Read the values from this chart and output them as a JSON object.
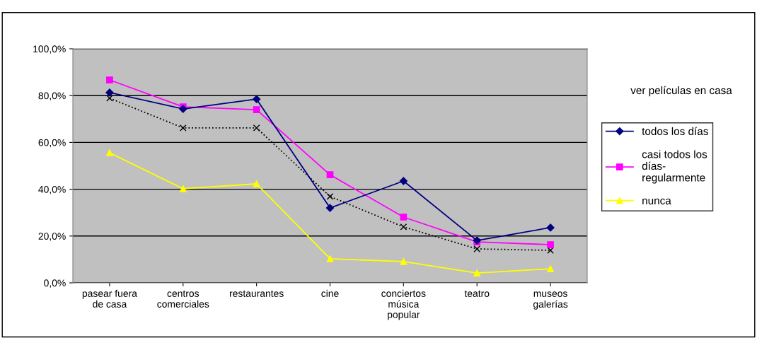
{
  "chart_data": {
    "type": "line",
    "legend_title": "ver películas en casa",
    "categories": [
      "pasear fuera\nde casa",
      "centros\ncomerciales",
      "restaurantes",
      "cine",
      "conciertos\nmúsica\npopular",
      "teatro",
      "museos\ngalerías"
    ],
    "series": [
      {
        "name": "todos los días",
        "color": "#000080",
        "marker": "diamond",
        "line_style": "solid",
        "values": [
          81.3,
          74.3,
          78.5,
          32.0,
          43.5,
          18.1,
          23.6
        ]
      },
      {
        "name": "casi todos los\ndías-\nregularmente",
        "color": "#ff00ff",
        "marker": "square",
        "line_style": "solid",
        "values": [
          86.7,
          75.2,
          74.0,
          46.2,
          28.1,
          17.5,
          16.3
        ]
      },
      {
        "name": "nunca",
        "color": "#ffff00",
        "marker": "triangle",
        "line_style": "solid",
        "values": [
          55.6,
          40.2,
          42.3,
          10.3,
          9.1,
          4.2,
          6.0
        ]
      },
      {
        "color": "#000000",
        "marker": "cross",
        "line_style": "dotted",
        "values": [
          78.9,
          66.2,
          66.2,
          36.9,
          23.9,
          14.5,
          13.9
        ]
      }
    ],
    "ylim": [
      0,
      100
    ],
    "yticks": [
      {
        "value": 0,
        "label": "0,0%"
      },
      {
        "value": 20,
        "label": "20,0%"
      },
      {
        "value": 40,
        "label": "40,0%"
      },
      {
        "value": 60,
        "label": "60,0%"
      },
      {
        "value": 80,
        "label": "80,0%"
      },
      {
        "value": 100,
        "label": "100,0%"
      }
    ],
    "grid": "y",
    "legend": "right"
  }
}
